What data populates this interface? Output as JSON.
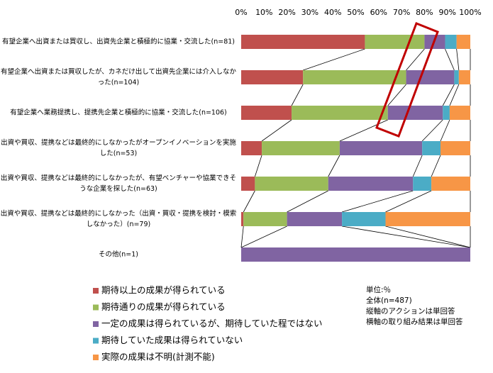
{
  "chart_data": {
    "type": "stacked-bar-100",
    "categories": [
      "有望企業へ出資または買収し、出資先企業と積極的に協業・交流した(n=81)",
      "有望企業へ出資または買収したが、カネだけ出して出資先企業には介入しなかった(n=104)",
      "有望企業へ業務提携し、提携先企業と積極的に協業・交流した(n=106)",
      "出資や買収、提携などは最終的にしなかったがオープンイノベーションを実施した(n=53)",
      "出資や買収、提携などは最終的にしなかったが、有望ベンチャーや協業できそうな企業を探した(n=63)",
      "出資や買収、提携などは最終的にしなかった（出資・買収・提携を検討・模索しなかった）(n=79)",
      "その他(n=1)"
    ],
    "series": [
      {
        "name": "期待以上の成果が得られている",
        "color": "#c0504d",
        "values": [
          54,
          27,
          22,
          9,
          6,
          1,
          0
        ]
      },
      {
        "name": "期待通りの成果が得られている",
        "color": "#9bbb59",
        "values": [
          26,
          45,
          42,
          34,
          32,
          19,
          0
        ]
      },
      {
        "name": "一定の成果は得られているが、期待していた程ではない",
        "color": "#8064a2",
        "values": [
          9,
          21,
          24,
          36,
          37,
          24,
          100
        ]
      },
      {
        "name": "期待していた成果は得られていない",
        "color": "#4bacc6",
        "values": [
          5,
          2,
          3,
          8,
          8,
          19,
          0
        ]
      },
      {
        "name": "実際の成果は不明(計測不能)",
        "color": "#f79646",
        "values": [
          6,
          5,
          9,
          13,
          17,
          37,
          0
        ]
      }
    ],
    "xlim": [
      0,
      100
    ],
    "xticks": [
      {
        "value": 0,
        "label": "0%"
      },
      {
        "value": 10,
        "label": "10%"
      },
      {
        "value": 20,
        "label": "20%"
      },
      {
        "value": 30,
        "label": "30%"
      },
      {
        "value": 40,
        "label": "40%"
      },
      {
        "value": 50,
        "label": "50%"
      },
      {
        "value": 60,
        "label": "60%"
      },
      {
        "value": 70,
        "label": "70%"
      },
      {
        "value": 80,
        "label": "80%"
      },
      {
        "value": 90,
        "label": "90%"
      },
      {
        "value": 100,
        "label": "100%"
      }
    ],
    "notes": [
      "単位:％",
      "全体(n=487)",
      "縦軸のアクションは単回答",
      "横軸の取り組み結果は単回答"
    ]
  }
}
